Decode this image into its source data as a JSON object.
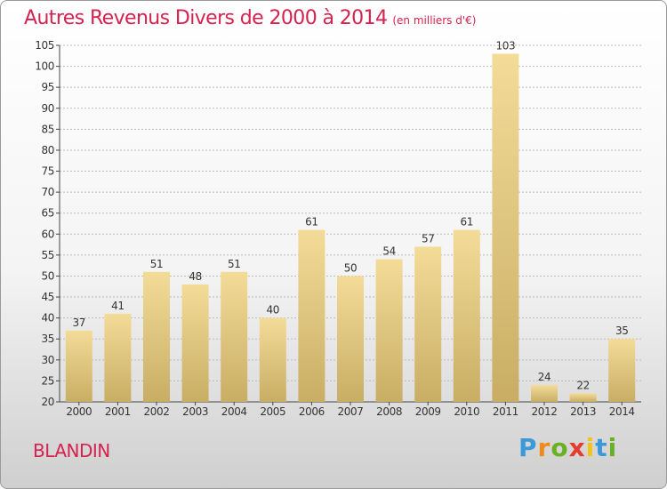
{
  "header": {
    "title": "Autres Revenus Divers de 2000 à 2014",
    "subtitle": "(en milliers d'€)"
  },
  "footer": {
    "commune": "BLANDIN",
    "brand": [
      "P",
      "r",
      "o",
      "x",
      "i",
      "t",
      "i"
    ],
    "brand_colors": [
      "#3a9ad9",
      "#f08a1c",
      "#6ab023",
      "#e53b2c",
      "#f0c419",
      "#3a9ad9",
      "#6ab023"
    ]
  },
  "chart_data": {
    "type": "bar",
    "categories": [
      "2000",
      "2001",
      "2002",
      "2003",
      "2004",
      "2005",
      "2006",
      "2007",
      "2008",
      "2009",
      "2010",
      "2011",
      "2012",
      "2013",
      "2014"
    ],
    "values": [
      37,
      41,
      51,
      48,
      51,
      40,
      61,
      50,
      54,
      57,
      61,
      103,
      24,
      22,
      35
    ],
    "ylim": [
      20,
      105
    ],
    "yticks": [
      20,
      25,
      30,
      35,
      40,
      45,
      50,
      55,
      60,
      65,
      70,
      75,
      80,
      85,
      90,
      95,
      100,
      105
    ],
    "grid": true,
    "colors": {
      "bar_light": "#f3dc98",
      "bar_dark": "#c9ad64",
      "grid": "#bbbbbb"
    }
  }
}
